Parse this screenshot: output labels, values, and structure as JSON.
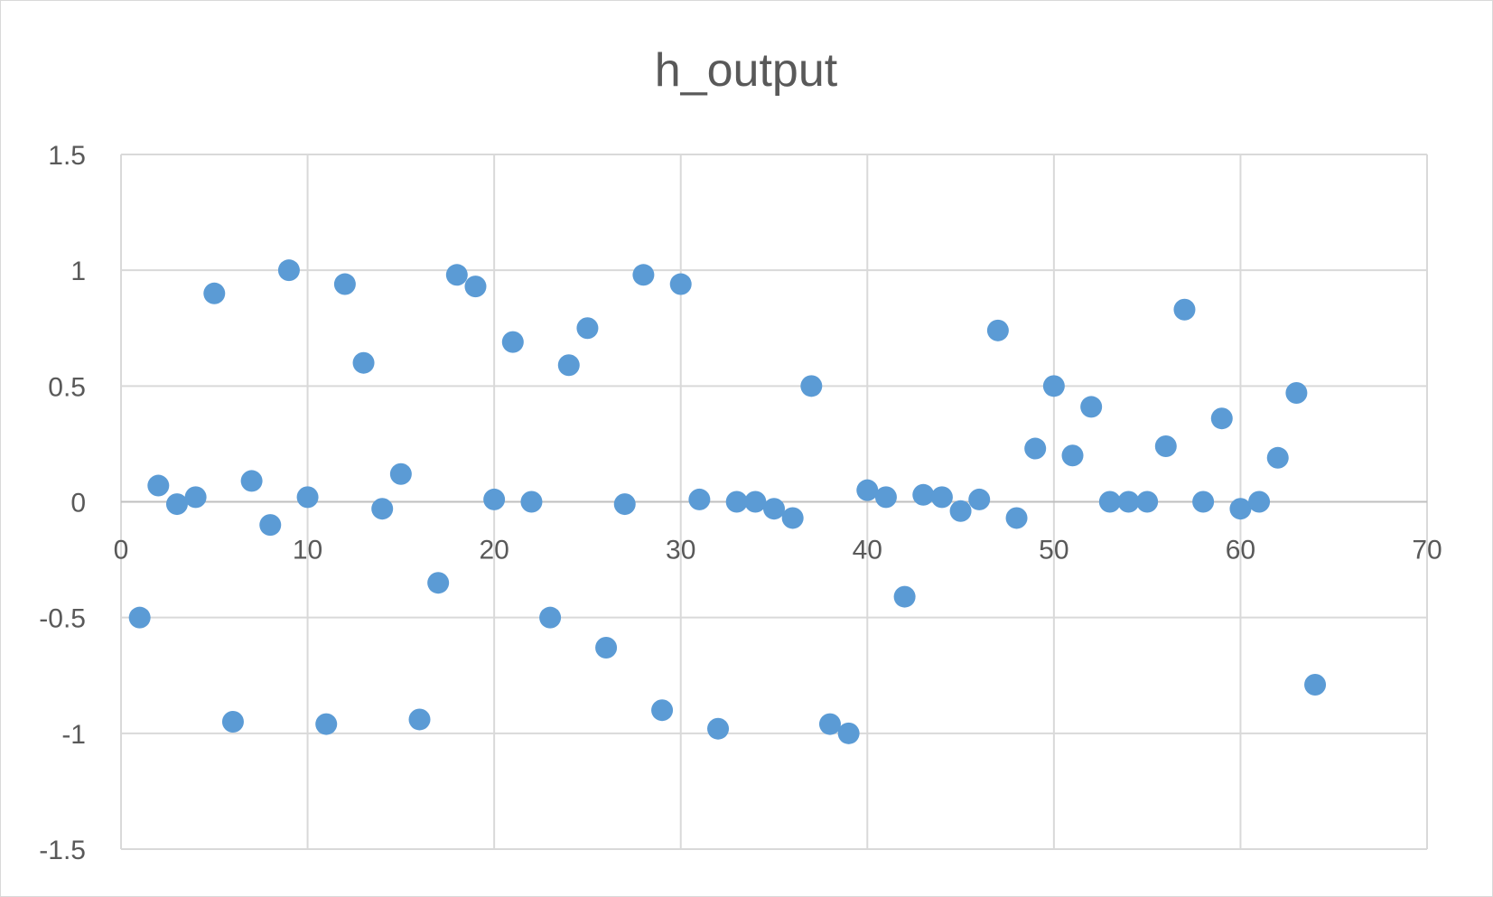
{
  "chart_data": {
    "type": "scatter",
    "title": "h_output",
    "xlabel": "",
    "ylabel": "",
    "xlim": [
      0,
      70
    ],
    "ylim": [
      -1.5,
      1.5
    ],
    "x_ticks": [
      "0",
      "10",
      "20",
      "30",
      "40",
      "50",
      "60",
      "70"
    ],
    "y_ticks": [
      "1.5",
      "1",
      "0.5",
      "0",
      "-0.5",
      "-1",
      "-1.5"
    ],
    "grid": true,
    "legend": "none",
    "marker_color": "#5B9BD5",
    "series": [
      {
        "x": [
          1,
          2,
          3,
          4,
          5,
          6,
          7,
          8,
          9,
          10,
          11,
          12,
          13,
          14,
          15,
          16,
          17,
          18,
          19,
          20,
          21,
          22,
          23,
          24,
          25,
          26,
          27,
          28,
          29,
          30,
          31,
          32,
          33,
          34,
          35,
          36,
          37,
          38,
          39,
          40,
          41,
          42,
          43,
          44,
          45,
          46,
          47,
          48,
          49,
          50,
          51,
          52,
          53,
          54,
          55,
          56,
          57,
          58,
          59,
          60,
          61,
          62,
          63,
          64
        ],
        "y": [
          -0.5,
          0.07,
          -0.01,
          0.02,
          0.9,
          -0.95,
          0.09,
          -0.1,
          1.0,
          0.02,
          -0.96,
          0.94,
          0.6,
          -0.03,
          0.12,
          -0.94,
          -0.35,
          0.98,
          0.93,
          0.01,
          0.69,
          0.0,
          -0.5,
          0.59,
          0.75,
          -0.63,
          -0.01,
          0.98,
          -0.9,
          0.94,
          0.01,
          -0.98,
          0.0,
          0.0,
          -0.03,
          -0.07,
          0.5,
          -0.96,
          -1.0,
          0.05,
          0.02,
          -0.41,
          0.03,
          0.02,
          -0.04,
          0.01,
          0.74,
          -0.07,
          0.23,
          0.5,
          0.2,
          0.41,
          0.0,
          0.0,
          0.0,
          0.24,
          0.83,
          0.0,
          0.36,
          -0.03,
          0.0,
          0.19,
          0.47,
          -0.79
        ]
      }
    ]
  }
}
